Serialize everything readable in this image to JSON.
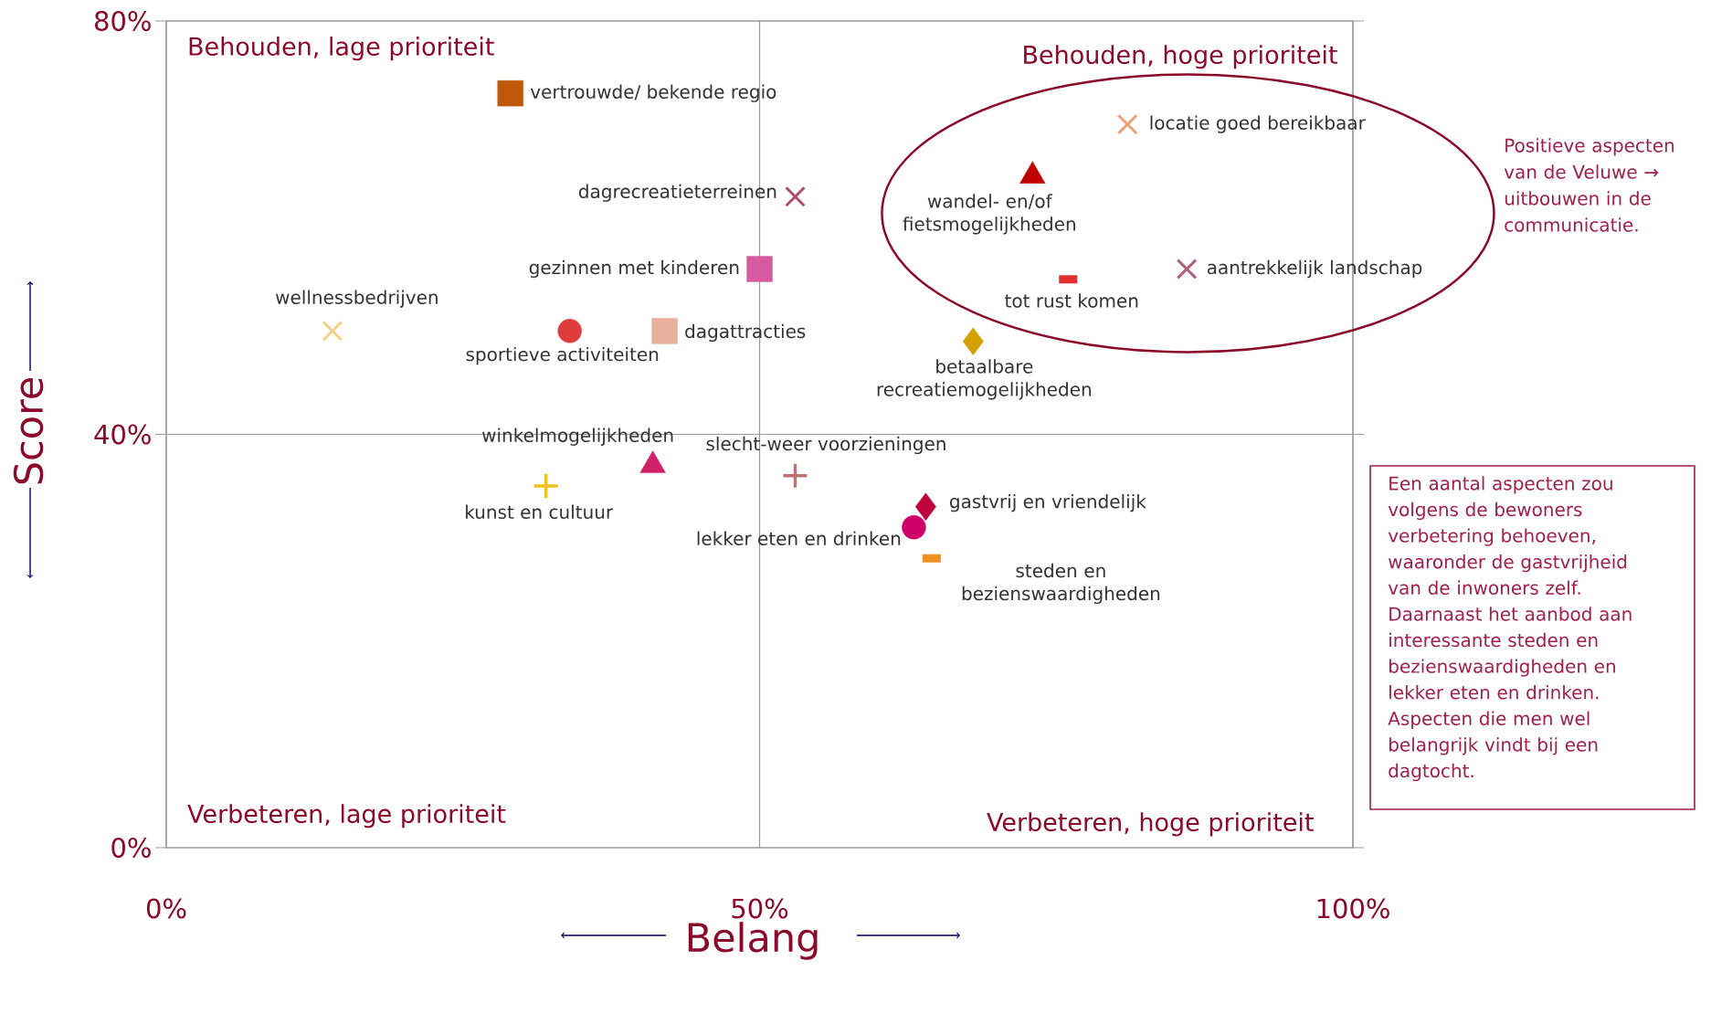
{
  "chart_data": {
    "type": "scatter",
    "xlabel": "Belang",
    "ylabel": "Score",
    "xlim": [
      0,
      100
    ],
    "ylim": [
      0,
      80
    ],
    "xticks": [
      {
        "value": 0,
        "label": "0%"
      },
      {
        "value": 50,
        "label": "50%"
      },
      {
        "value": 100,
        "label": "100%"
      }
    ],
    "yticks": [
      {
        "value": 0,
        "label": "0%"
      },
      {
        "value": 40,
        "label": "40%"
      },
      {
        "value": 80,
        "label": "80%"
      }
    ],
    "grid": true,
    "series": [
      {
        "name": "vertrouwde/ bekende regio",
        "color": "#c0580a",
        "marker": "square",
        "x": [
          29
        ],
        "values": [
          73
        ]
      },
      {
        "name": "dagrecreatieterreinen",
        "color": "#b05070",
        "marker": "cross",
        "x": [
          53
        ],
        "values": [
          63
        ]
      },
      {
        "name": "gezinnen met kinderen",
        "color": "#d75aa0",
        "marker": "square",
        "x": [
          50
        ],
        "values": [
          56
        ]
      },
      {
        "name": "wellnessbedrijven",
        "color": "#f5d08a",
        "marker": "cross",
        "x": [
          14
        ],
        "values": [
          50
        ]
      },
      {
        "name": "sportieve activiteiten",
        "color": "#e03c3c",
        "marker": "circle",
        "x": [
          34
        ],
        "values": [
          50
        ]
      },
      {
        "name": "dagattracties",
        "color": "#e8b09a",
        "marker": "square",
        "x": [
          42
        ],
        "values": [
          50
        ]
      },
      {
        "name": "locatie goed bereikbaar",
        "color": "#f0a070",
        "marker": "cross",
        "x": [
          81
        ],
        "values": [
          70
        ]
      },
      {
        "name": "wandel- en/of fietsmogelijkheden",
        "color": "#c00000",
        "marker": "triangle",
        "x": [
          73
        ],
        "values": [
          65
        ]
      },
      {
        "name": "tot rust komen",
        "color": "#e03030",
        "marker": "square",
        "x": [
          76
        ],
        "values": [
          55
        ]
      },
      {
        "name": "aantrekkelijk landschap",
        "color": "#b06080",
        "marker": "cross",
        "x": [
          86
        ],
        "values": [
          56
        ]
      },
      {
        "name": "betaalbare recreatiemogelijkheden",
        "color": "#d4a000",
        "marker": "diamond",
        "x": [
          68
        ],
        "values": [
          49
        ]
      },
      {
        "name": "winkelmogelijkheden",
        "color": "#d0206a",
        "marker": "triangle",
        "x": [
          41
        ],
        "values": [
          37
        ]
      },
      {
        "name": "kunst en cultuur",
        "color": "#f0c020",
        "marker": "cross",
        "x": [
          32
        ],
        "values": [
          35
        ]
      },
      {
        "name": "slecht-weer voorzieningen",
        "color": "#c07070",
        "marker": "cross",
        "x": [
          53
        ],
        "values": [
          36
        ]
      },
      {
        "name": "gastvrij en vriendelijk",
        "color": "#c0003c",
        "marker": "diamond",
        "x": [
          64
        ],
        "values": [
          33
        ]
      },
      {
        "name": "lekker eten en drinken",
        "color": "#d0006a",
        "marker": "circle",
        "x": [
          63
        ],
        "values": [
          31
        ]
      },
      {
        "name": "steden en bezienswaardigheden",
        "color": "#f09020",
        "marker": "square",
        "x": [
          64.5
        ],
        "values": [
          28
        ]
      }
    ],
    "annotations": [
      "Behouden, lage prioriteit",
      "Behouden, hoge prioriteit",
      "Verbeteren, lage prioriteit",
      "Verbeteren, hoge prioriteit",
      "Positieve aspecten van de Veluwe → uitbouwen in de communicatie.",
      "Een aantal aspecten zou volgens de bewoners verbetering behoeven, waaronder de gastvrijheid van de inwoners zelf. Daarnaast het aanbod aan interessante steden en bezienswaardigheden en lekker eten en drinken. Aspecten die men wel belangrijk vindt bij een dagtocht."
    ]
  }
}
